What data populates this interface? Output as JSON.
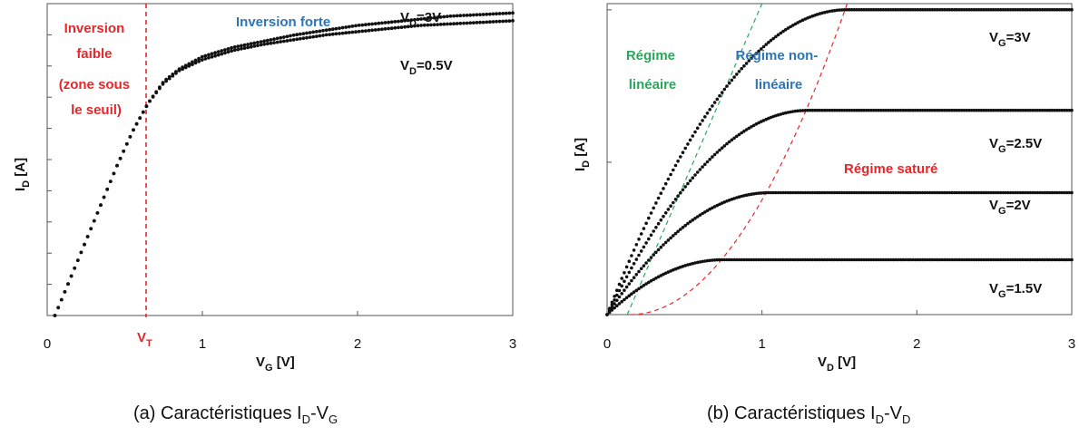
{
  "chart_data": [
    {
      "type": "scatter",
      "xlim": [
        0,
        3
      ],
      "xticks": [
        "0",
        "1",
        "2",
        "3"
      ],
      "xlabel": {
        "main": "V",
        "sub": "G",
        "rest": " [V]"
      },
      "ylabel": {
        "main": "I",
        "sub": "D",
        "rest": " [A]"
      },
      "vt_label": {
        "main": "V",
        "sub": "T"
      },
      "vt_value": 0.65,
      "series": [
        {
          "label": {
            "main": "V",
            "sub": "D",
            "rest": "=3V"
          },
          "x": [
            0.05,
            0.15,
            0.25,
            0.35,
            0.45,
            0.55,
            0.65,
            0.75,
            0.85,
            1.0,
            1.2,
            1.4,
            1.6,
            1.8,
            2.0,
            2.2,
            2.4,
            2.6,
            2.8,
            3.0
          ],
          "y": [
            0.0,
            0.12,
            0.24,
            0.36,
            0.48,
            0.59,
            0.68,
            0.75,
            0.79,
            0.83,
            0.86,
            0.88,
            0.9,
            0.915,
            0.93,
            0.94,
            0.95,
            0.96,
            0.965,
            0.97
          ]
        },
        {
          "label": {
            "main": "V",
            "sub": "D",
            "rest": "=0.5V"
          },
          "x": [
            0.05,
            0.15,
            0.25,
            0.35,
            0.45,
            0.55,
            0.65,
            0.75,
            0.85,
            1.0,
            1.2,
            1.4,
            1.6,
            1.8,
            2.0,
            2.2,
            2.4,
            2.6,
            2.8,
            3.0
          ],
          "y": [
            0.0,
            0.12,
            0.24,
            0.36,
            0.48,
            0.59,
            0.68,
            0.745,
            0.785,
            0.82,
            0.85,
            0.87,
            0.885,
            0.9,
            0.91,
            0.92,
            0.93,
            0.935,
            0.94,
            0.945
          ]
        }
      ],
      "annotations": {
        "weak": [
          "Inversion",
          "faible",
          "(zone sous",
          "le seuil)"
        ],
        "strong": "Inversion forte"
      },
      "colors": {
        "weak": "#e8262a",
        "strong": "#2e75b6",
        "vt_line": "#e8262a"
      }
    },
    {
      "type": "scatter",
      "xlim": [
        0,
        3
      ],
      "xticks": [
        "0",
        "1",
        "2",
        "3"
      ],
      "xlabel": {
        "main": "V",
        "sub": "D",
        "rest": " [V]"
      },
      "ylabel": {
        "main": "I",
        "sub": "D",
        "rest": " [A]"
      },
      "series": [
        {
          "label": {
            "main": "V",
            "sub": "G",
            "rest": "=3V"
          },
          "isat": 1.0,
          "vsat": 1.55
        },
        {
          "label": {
            "main": "V",
            "sub": "G",
            "rest": "=2.5V"
          },
          "isat": 0.67,
          "vsat": 1.3
        },
        {
          "label": {
            "main": "V",
            "sub": "G",
            "rest": "=2V"
          },
          "isat": 0.4,
          "vsat": 1.05
        },
        {
          "label": {
            "main": "V",
            "sub": "G",
            "rest": "=1.5V"
          },
          "isat": 0.18,
          "vsat": 0.75
        }
      ],
      "regions": {
        "linear": [
          "Régime",
          "linéaire"
        ],
        "nonlinear": [
          "Régime non-",
          "linéaire"
        ],
        "saturated": "Régime saturé"
      },
      "colors": {
        "linear": "#27a85a",
        "nonlinear": "#2e75b6",
        "saturated": "#e8262a"
      }
    }
  ],
  "captions": {
    "left": {
      "a": "(a) Caractéristiques I",
      "b": "D",
      "c": "-V",
      "d": "G"
    },
    "right": {
      "a": "(b) Caractéristiques I",
      "b": "D",
      "c": "-V",
      "d": "D"
    }
  }
}
